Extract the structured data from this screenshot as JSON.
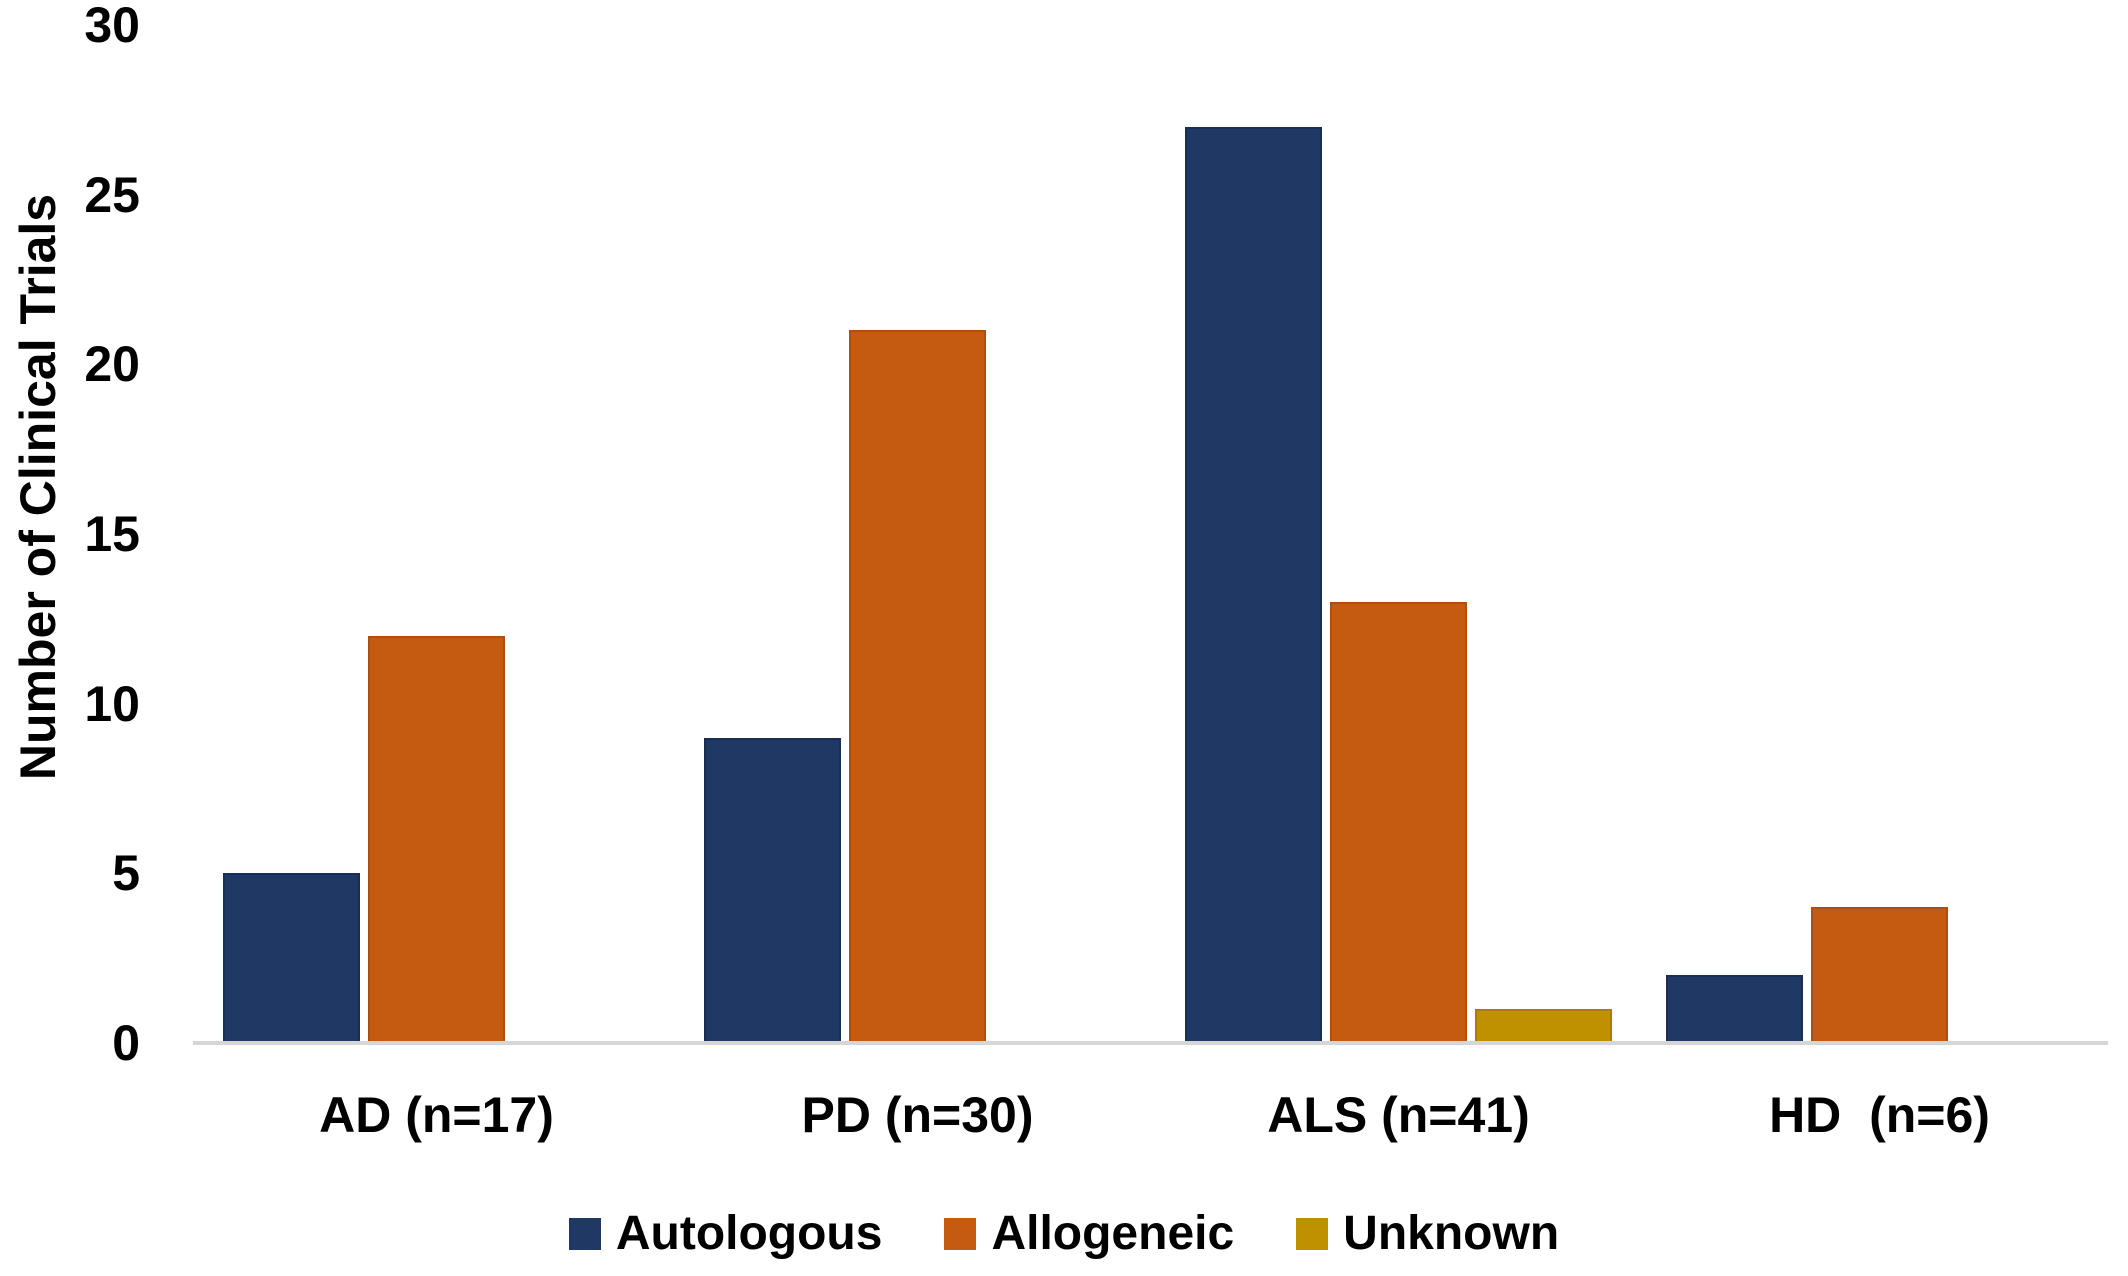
{
  "chart_data": {
    "type": "bar",
    "title": "",
    "xlabel": "",
    "ylabel": "Number of Clinical Trials",
    "ylim": [
      0,
      30
    ],
    "yticks": [
      0,
      5,
      10,
      15,
      20,
      25,
      30
    ],
    "grid": false,
    "legend_position": "bottom",
    "categories": [
      "AD (n=17)",
      "PD (n=30)",
      "ALS (n=41)",
      "HD  (n=6)"
    ],
    "series": [
      {
        "name": "Autologous",
        "color": "#1F3864",
        "edge_color": "#192E54",
        "values": [
          5,
          9,
          27,
          2
        ]
      },
      {
        "name": "Allogeneic",
        "color": "#C55A11",
        "edge_color": "#AD4F0E",
        "values": [
          12,
          21,
          13,
          4
        ]
      },
      {
        "name": "Unknown",
        "color": "#BF9000",
        "edge_color": "#A87E00",
        "values": [
          0,
          0,
          1,
          0
        ]
      }
    ]
  },
  "colors": {
    "background": "#FFFFFF",
    "axis_line": "#D6D6D6",
    "text": "#000000"
  }
}
